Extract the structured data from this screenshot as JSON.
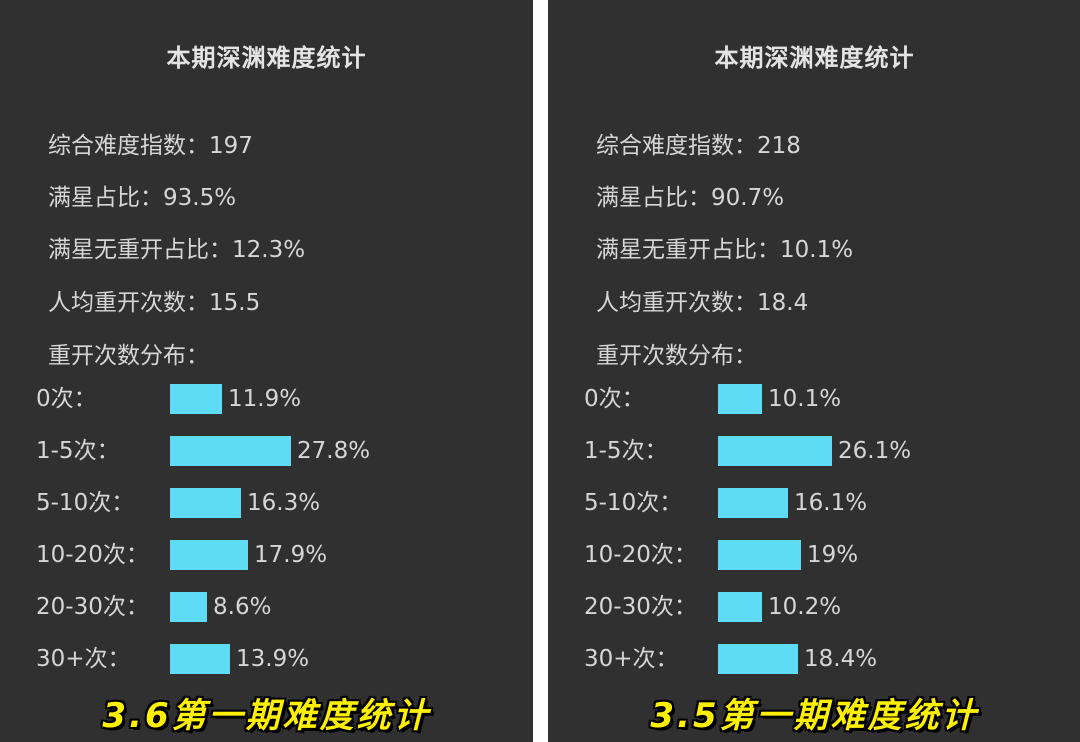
{
  "chart_data": [
    {
      "type": "bar",
      "orientation": "horizontal",
      "title": "本期深渊难度统计",
      "stats": [
        {
          "label": "综合难度指数：",
          "value": "197"
        },
        {
          "label": "满星占比：",
          "value": "93.5%"
        },
        {
          "label": "满星无重开占比：",
          "value": "12.3%"
        },
        {
          "label": "人均重开次数：",
          "value": "15.5"
        }
      ],
      "distribution_label": "重开次数分布：",
      "categories": [
        "0次：",
        "1-5次：",
        "5-10次：",
        "10-20次：",
        "20-30次：",
        "30+次："
      ],
      "values": [
        11.9,
        27.8,
        16.3,
        17.9,
        8.6,
        13.9
      ],
      "value_labels": [
        "11.9%",
        "27.8%",
        "16.3%",
        "17.9%",
        "8.6%",
        "13.9%"
      ],
      "bar_color": "#5fdcf5",
      "caption": "3.6第一期难度统计"
    },
    {
      "type": "bar",
      "orientation": "horizontal",
      "title": "本期深渊难度统计",
      "stats": [
        {
          "label": "综合难度指数：",
          "value": "218"
        },
        {
          "label": "满星占比：",
          "value": "90.7%"
        },
        {
          "label": "满星无重开占比：",
          "value": "10.1%"
        },
        {
          "label": "人均重开次数：",
          "value": "18.4"
        }
      ],
      "distribution_label": "重开次数分布：",
      "categories": [
        "0次：",
        "1-5次：",
        "5-10次：",
        "10-20次：",
        "20-30次：",
        "30+次："
      ],
      "values": [
        10.1,
        26.1,
        16.1,
        19,
        10.2,
        18.4
      ],
      "value_labels": [
        "10.1%",
        "26.1%",
        "16.1%",
        "19%",
        "10.2%",
        "18.4%"
      ],
      "bar_color": "#5fdcf5",
      "caption": "3.5第一期难度统计"
    }
  ]
}
